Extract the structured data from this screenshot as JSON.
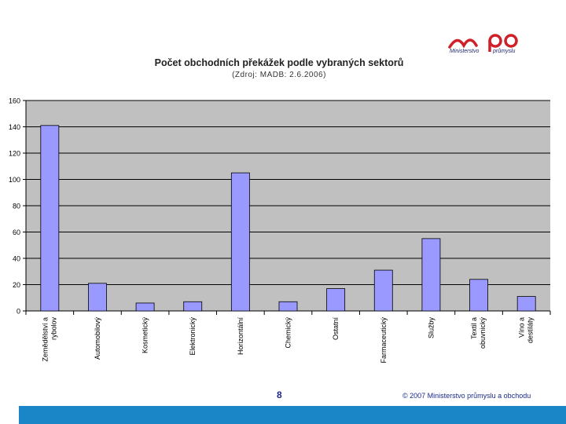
{
  "logo": {
    "brand": "mpo",
    "line1": "Ministerstvo",
    "line2": "průmyslu"
  },
  "colors": {
    "plot_bg": "#c0c0c0",
    "bar": "#9999ff",
    "logo_red": "#d0202a",
    "logo_blue": "#1f2a6b",
    "footer": "#1a86c7"
  },
  "chart_data": {
    "type": "bar",
    "title": "Počet obchodních překážek podle vybraných sektorů",
    "subtitle": "(Zdroj: MADB: 2.6.2006)",
    "categories": [
      "Zemědělství a rybolov",
      "Automobilový",
      "Kosmetický",
      "Elektronický",
      "Horizontální",
      "Chemický",
      "Ostatní",
      "Farmaceutický",
      "Služby",
      "Textil a obuvnický",
      "Víno a destiláty"
    ],
    "values": [
      141,
      21,
      6,
      7,
      105,
      7,
      17,
      31,
      55,
      24,
      11
    ],
    "ylim": [
      0,
      160
    ],
    "yticks": [
      0,
      20,
      40,
      60,
      80,
      100,
      120,
      140,
      160
    ],
    "grid": true,
    "xlabel": "",
    "ylabel": ""
  },
  "footer": {
    "page_number": "8",
    "copyright": "© 2007 Ministerstvo průmyslu a obchodu"
  }
}
